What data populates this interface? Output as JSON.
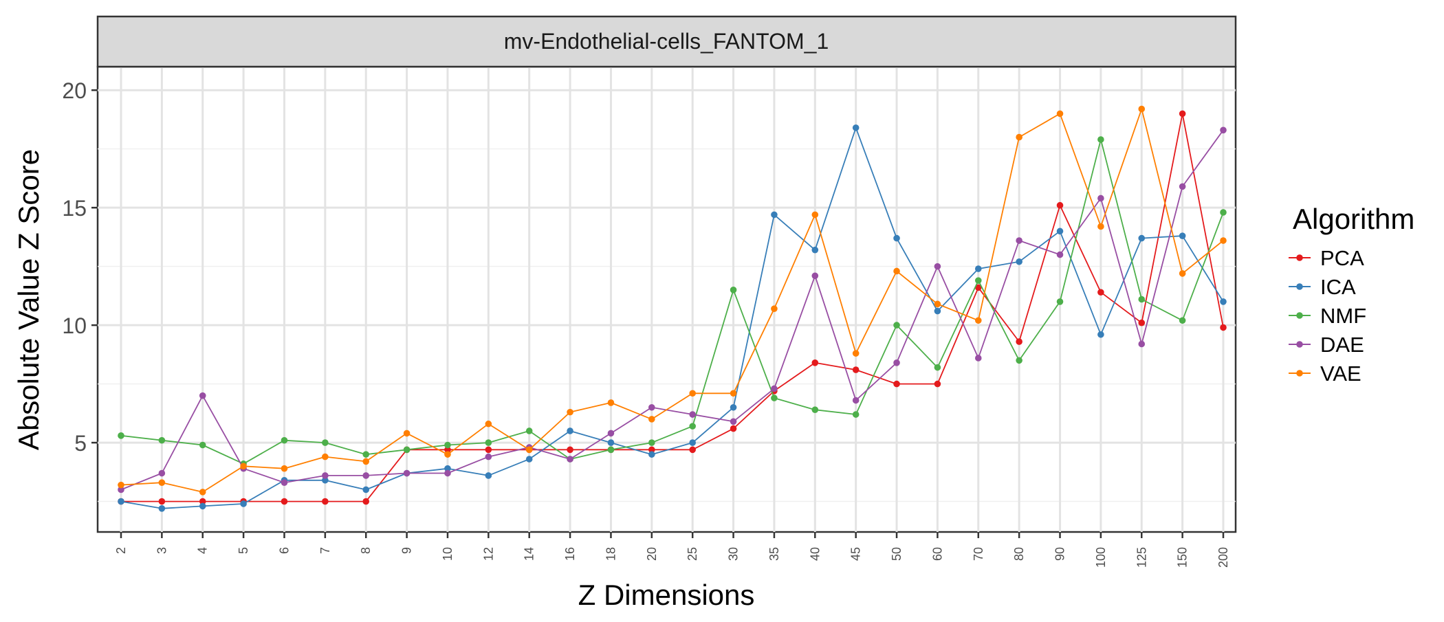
{
  "chart_data": {
    "type": "line",
    "title": "mv-Endothelial-cells_FANTOM_1",
    "xlabel": "Z Dimensions",
    "ylabel": "Absolute Value Z Score",
    "categories": [
      "2",
      "3",
      "4",
      "5",
      "6",
      "7",
      "8",
      "9",
      "10",
      "12",
      "14",
      "16",
      "18",
      "20",
      "25",
      "30",
      "35",
      "40",
      "45",
      "50",
      "60",
      "70",
      "80",
      "90",
      "100",
      "125",
      "150",
      "200"
    ],
    "yticks": [
      5,
      10,
      15,
      20
    ],
    "ylim": [
      1.2,
      21.0
    ],
    "grid": true,
    "legend": {
      "title": "Algorithm",
      "position": "right"
    },
    "series": [
      {
        "name": "PCA",
        "color": "#e41a1c",
        "values": [
          2.5,
          2.5,
          2.5,
          2.5,
          2.5,
          2.5,
          2.5,
          4.7,
          4.7,
          4.7,
          4.7,
          4.7,
          4.7,
          4.7,
          4.7,
          5.6,
          7.2,
          8.4,
          8.1,
          7.5,
          7.5,
          11.6,
          9.3,
          15.1,
          11.4,
          10.1,
          19.0,
          9.9
        ]
      },
      {
        "name": "ICA",
        "color": "#377eb8",
        "values": [
          2.5,
          2.2,
          2.3,
          2.4,
          3.4,
          3.4,
          3.0,
          3.7,
          3.9,
          3.6,
          4.3,
          5.5,
          5.0,
          4.5,
          5.0,
          6.5,
          14.7,
          13.2,
          18.4,
          13.7,
          10.6,
          12.4,
          12.7,
          14.0,
          9.6,
          13.7,
          13.8,
          11.0
        ]
      },
      {
        "name": "NMF",
        "color": "#4daf4a",
        "values": [
          5.3,
          5.1,
          4.9,
          4.1,
          5.1,
          5.0,
          4.5,
          4.7,
          4.9,
          5.0,
          5.5,
          4.3,
          4.7,
          5.0,
          5.7,
          11.5,
          6.9,
          6.4,
          6.2,
          10.0,
          8.2,
          11.9,
          8.5,
          11.0,
          17.9,
          11.1,
          10.2,
          14.8
        ]
      },
      {
        "name": "DAE",
        "color": "#984ea3",
        "values": [
          3.0,
          3.7,
          7.0,
          3.9,
          3.3,
          3.6,
          3.6,
          3.7,
          3.7,
          4.4,
          4.8,
          4.3,
          5.4,
          6.5,
          6.2,
          5.9,
          7.3,
          12.1,
          6.8,
          8.4,
          12.5,
          8.6,
          13.6,
          13.0,
          15.4,
          9.2,
          15.9,
          18.3
        ]
      },
      {
        "name": "VAE",
        "color": "#ff7f00",
        "values": [
          3.2,
          3.3,
          2.9,
          4.0,
          3.9,
          4.4,
          4.2,
          5.4,
          4.5,
          5.8,
          4.7,
          6.3,
          6.7,
          6.0,
          7.1,
          7.1,
          10.7,
          14.7,
          8.8,
          12.3,
          10.9,
          10.2,
          18.0,
          19.0,
          14.2,
          19.2,
          12.2,
          13.6
        ]
      }
    ]
  }
}
